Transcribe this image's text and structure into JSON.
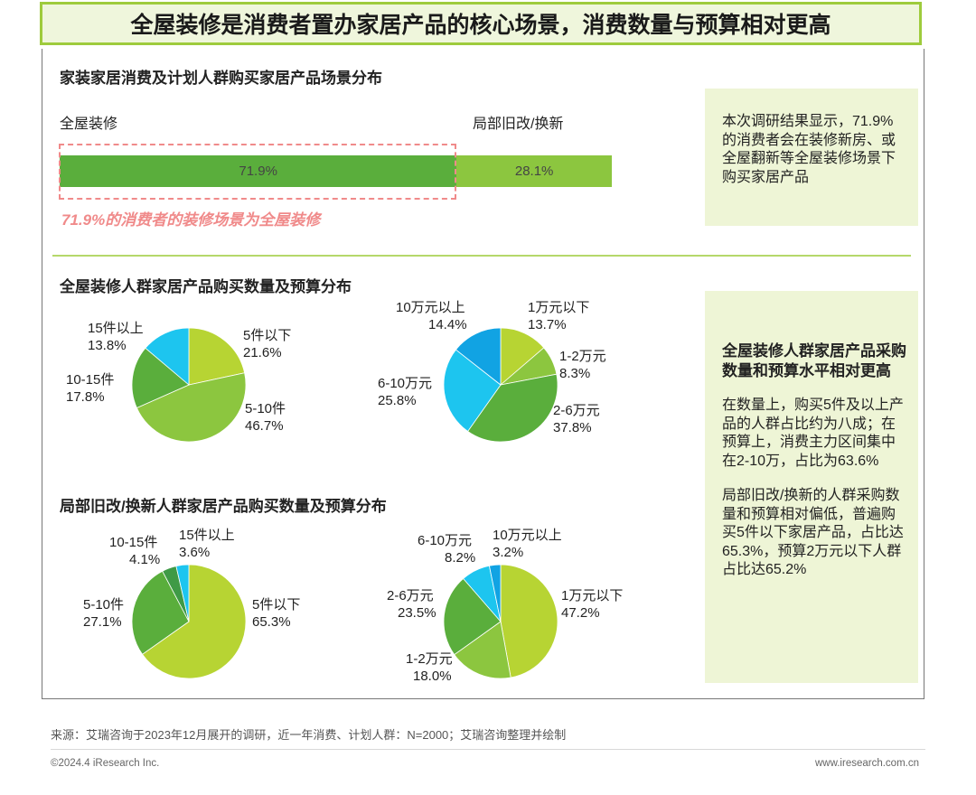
{
  "title": "全屋装修是消费者置办家居产品的核心场景，消费数量与预算相对更高",
  "section1": {
    "title": "家装家居消费及计划人群购买家居产品场景分布",
    "left_label": "全屋装修",
    "right_label": "局部旧改/换新",
    "bar_left_value": "71.9%",
    "bar_right_value": "28.1%",
    "note": "71.9%的消费者的装修场景为全屋装修",
    "side_text": "本次调研结果显示，71.9%的消费者会在装修新房、或全屋翻新等全屋装修场景下购买家居产品"
  },
  "section2": {
    "title": "全屋装修人群家居产品购买数量及预算分布"
  },
  "section3": {
    "title": "局部旧改/换新人群家居产品购买数量及预算分布"
  },
  "side2": {
    "heading": "全屋装修人群家居产品采购数量和预算水平相对更高",
    "para1": "在数量上，购买5件及以上产品的人群占比约为八成；在预算上，消费主力区间集中在2-10万，占比为63.6%",
    "para2": "局部旧改/换新的人群采购数量和预算相对偏低，普遍购买5件以下家居产品，占比达65.3%，预算2万元以下人群占比达65.2%"
  },
  "chart_data": [
    {
      "type": "bar",
      "title": "家装家居消费及计划人群购买家居产品场景分布",
      "categories": [
        "全屋装修",
        "局部旧改/换新"
      ],
      "values": [
        71.9,
        28.1
      ],
      "stacked": true,
      "colors": [
        "#5aae3c",
        "#8cc63f"
      ]
    },
    {
      "type": "pie",
      "title": "全屋装修人群家居产品购买数量及预算分布",
      "categories": [
        "5件以下",
        "5-10件",
        "10-15件",
        "15件以上"
      ],
      "values": [
        21.6,
        46.7,
        17.8,
        13.8
      ],
      "value_labels": [
        "21.6%",
        "46.7%",
        "17.8%",
        "13.8%"
      ],
      "colors": [
        "#b7d433",
        "#8cc63f",
        "#5aae3c",
        "#1dc5ef"
      ]
    },
    {
      "type": "pie",
      "title": "全屋装修人群家居产品购买数量及预算分布",
      "categories": [
        "1万元以下",
        "1-2万元",
        "2-6万元",
        "6-10万元",
        "10万元以上"
      ],
      "values": [
        13.7,
        8.3,
        37.8,
        25.8,
        14.4
      ],
      "value_labels": [
        "13.7%",
        "8.3%",
        "37.8%",
        "25.8%",
        "14.4%"
      ],
      "colors": [
        "#b7d433",
        "#8cc63f",
        "#5aae3c",
        "#1dc5ef",
        "#11a3e3"
      ]
    },
    {
      "type": "pie",
      "title": "局部旧改/换新人群家居产品购买数量及预算分布",
      "categories": [
        "5件以下",
        "5-10件",
        "10-15件",
        "15件以上"
      ],
      "values": [
        65.3,
        27.1,
        4.1,
        3.6
      ],
      "value_labels": [
        "65.3%",
        "27.1%",
        "4.1%",
        "3.6%"
      ],
      "colors": [
        "#b7d433",
        "#5aae3c",
        "#3f9a46",
        "#1dc5ef"
      ]
    },
    {
      "type": "pie",
      "title": "局部旧改/换新人群家居产品购买数量及预算分布",
      "categories": [
        "1万元以下",
        "1-2万元",
        "2-6万元",
        "6-10万元",
        "10万元以上"
      ],
      "values": [
        47.2,
        18.0,
        23.5,
        8.2,
        3.2
      ],
      "value_labels": [
        "47.2%",
        "18.0%",
        "23.5%",
        "8.2%",
        "3.2%"
      ],
      "colors": [
        "#b7d433",
        "#8cc63f",
        "#5aae3c",
        "#1dc5ef",
        "#11a3e3"
      ]
    }
  ],
  "footer": {
    "source": "来源：艾瑞咨询于2023年12月展开的调研，近一年消费、计划人群：N=2000；艾瑞咨询整理并绘制",
    "copyright": "©2024.4 iResearch Inc.",
    "website": "www.iresearch.com.cn"
  }
}
